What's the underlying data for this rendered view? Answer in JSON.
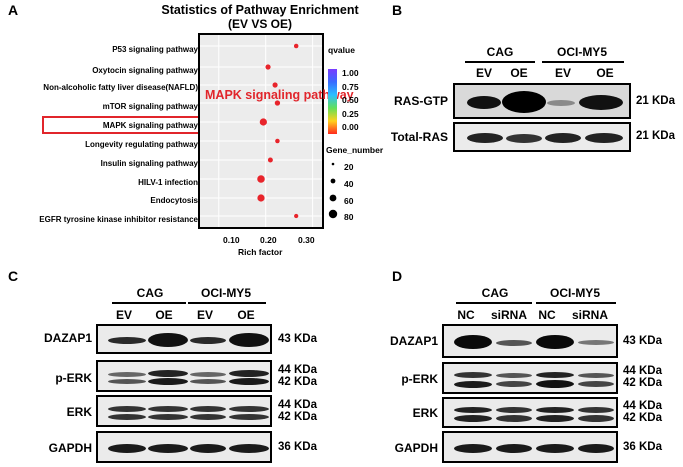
{
  "panels": {
    "A": {
      "letter": "A",
      "title_line1": "Statistics of Pathway Enrichment",
      "title_line2": "(EV VS OE)",
      "highlight_label": "MAPK signaling pathway",
      "chart_data": {
        "type": "scatter",
        "title": "Statistics of Pathway Enrichment (EV VS OE)",
        "xlabel": "Rich factor",
        "ylabel": "",
        "xlim": [
          0.06,
          0.32
        ],
        "xticks": [
          "0.10",
          "0.20",
          "0.30"
        ],
        "categories": [
          "P53 signaling pathway",
          "Oxytocin signaling pathway",
          "Non-alcoholic fatty liver disease(NAFLD)",
          "mTOR signaling pathway",
          "MAPK signaling pathway",
          "Longevity regulating pathway",
          "Insulin signaling pathway",
          "HILV-1 infection",
          "Endocytosis",
          "EGFR tyrosine kinase inhibitor resistance"
        ],
        "x": [
          0.265,
          0.205,
          0.22,
          0.225,
          0.195,
          0.225,
          0.21,
          0.19,
          0.19,
          0.265
        ],
        "gene_number": [
          12,
          18,
          18,
          20,
          45,
          12,
          16,
          50,
          45,
          10
        ],
        "qvalue": [
          0.0,
          0.0,
          0.0,
          0.0,
          0.0,
          0.0,
          0.0,
          0.0,
          0.0,
          0.0
        ],
        "grid": true,
        "legend_qvalue": {
          "title": "qvalue",
          "ticks": [
            "1.00",
            "0.75",
            "0.50",
            "0.25",
            "0.00"
          ]
        },
        "legend_size": {
          "title": "Gene_number",
          "entries": [
            "20",
            "40",
            "60",
            "80"
          ]
        },
        "colors": {
          "point": "#e8242b",
          "highlight": "#e8242b"
        }
      }
    },
    "B": {
      "letter": "B",
      "groups": [
        "CAG",
        "OCI-MY5"
      ],
      "lanes": [
        "EV",
        "OE",
        "EV",
        "OE"
      ],
      "rows": [
        {
          "name": "RAS-GTP",
          "kda": "21 KDa"
        },
        {
          "name": "Total-RAS",
          "kda": "21 KDa"
        }
      ]
    },
    "C": {
      "letter": "C",
      "groups": [
        "CAG",
        "OCI-MY5"
      ],
      "lanes": [
        "EV",
        "OE",
        "EV",
        "OE"
      ],
      "rows": [
        {
          "name": "DAZAP1",
          "kda": [
            "43 KDa"
          ]
        },
        {
          "name": "p-ERK",
          "kda": [
            "44 KDa",
            "42 KDa"
          ]
        },
        {
          "name": "ERK",
          "kda": [
            "44 KDa",
            "42 KDa"
          ]
        },
        {
          "name": "GAPDH",
          "kda": [
            "36 KDa"
          ]
        }
      ]
    },
    "D": {
      "letter": "D",
      "groups": [
        "CAG",
        "OCI-MY5"
      ],
      "lanes": [
        "NC",
        "siRNA",
        "NC",
        "siRNA"
      ],
      "rows": [
        {
          "name": "DAZAP1",
          "kda": [
            "43 KDa"
          ]
        },
        {
          "name": "p-ERK",
          "kda": [
            "44 KDa",
            "42 KDa"
          ]
        },
        {
          "name": "ERK",
          "kda": [
            "44 KDa",
            "42 KDa"
          ]
        },
        {
          "name": "GAPDH",
          "kda": [
            "36 KDa"
          ]
        }
      ]
    }
  }
}
